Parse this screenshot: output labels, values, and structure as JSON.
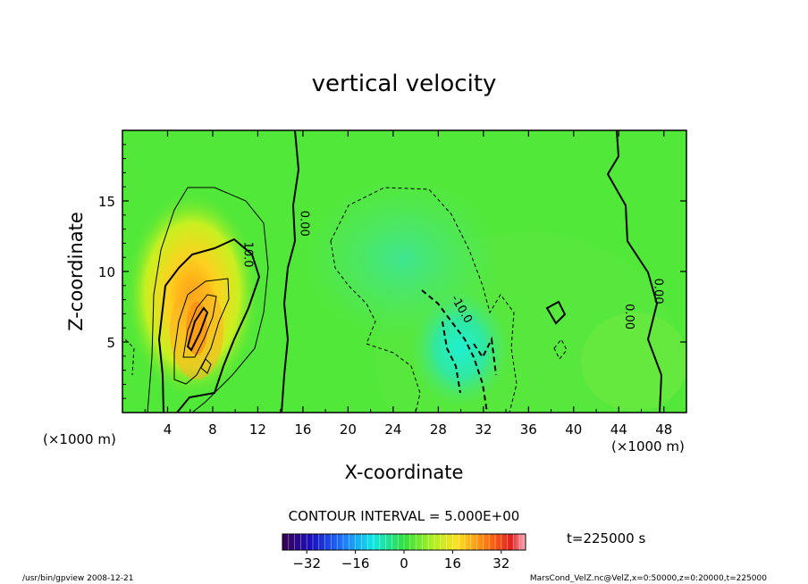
{
  "chart_data": {
    "type": "heatmap",
    "title": "vertical velocity",
    "xlabel": "X-coordinate",
    "ylabel": "Z-coordinate",
    "x_unit": "(×1000 m)",
    "x_unit_right": "(×1000 m)",
    "xlim": [
      0,
      50
    ],
    "ylim": [
      0,
      20
    ],
    "x_ticks": [
      4,
      8,
      12,
      16,
      20,
      24,
      28,
      32,
      36,
      40,
      44,
      48
    ],
    "y_ticks": [
      5,
      10,
      15
    ],
    "contour_interval_label": "CONTOUR INTERVAL = 5.000E+00",
    "time_label": "t=225000 s",
    "colorbar": {
      "range": [
        -40,
        40
      ],
      "ticks": [
        "−32",
        "−16",
        "0",
        "16",
        "32"
      ]
    },
    "contour_labels": [
      {
        "text": "10.0",
        "x": 10.8,
        "z": 11.2
      },
      {
        "text": "0.00",
        "x": 15.8,
        "z": 13.4
      },
      {
        "text": "-10.0",
        "x": 29.8,
        "z": 7.2
      },
      {
        "text": "0.00",
        "x": 44.6,
        "z": 6.8
      },
      {
        "text": "0.00",
        "x": 47.2,
        "z": 8.6
      }
    ],
    "features": [
      {
        "kind": "updraft",
        "x": 6,
        "z": 6.3,
        "peak": 25
      },
      {
        "kind": "downdraft",
        "x": 30.5,
        "z": 4.2,
        "peak": -15
      }
    ]
  },
  "footer": {
    "left": "/usr/bin/gpview   2008-12-21",
    "right": "MarsCond_VelZ.nc@VelZ,x=0:50000,z=0:20000,t=225000"
  }
}
